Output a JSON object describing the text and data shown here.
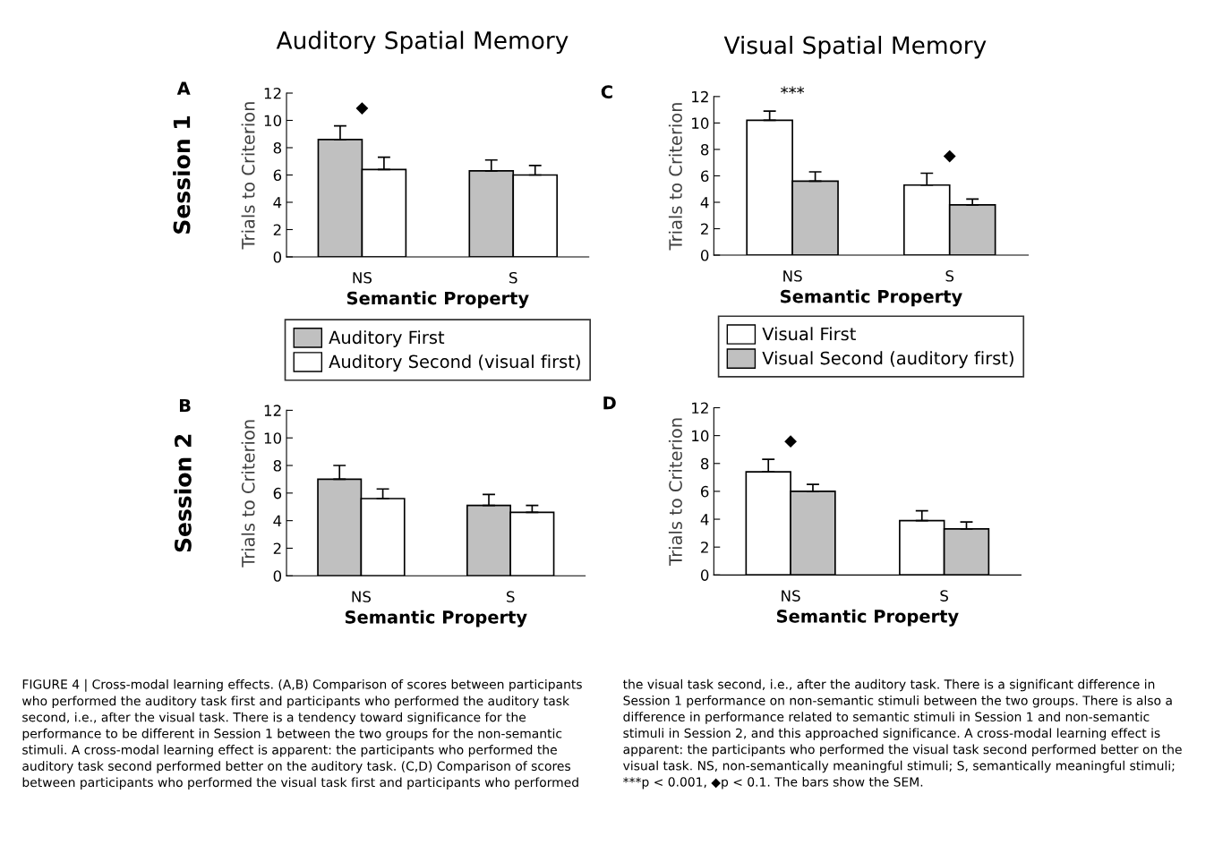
{
  "chart_data": [
    {
      "type": "bar",
      "title": "Auditory Spatial Memory",
      "xlabel": "Semantic Property",
      "ylabel": "Trials to Criterion",
      "categories": [
        "NS",
        "S"
      ],
      "series": [
        {
          "name": "Auditory First",
          "color": "#c0c0c0",
          "values": [
            8.6,
            6.3
          ],
          "errors": [
            1.0,
            0.8
          ]
        },
        {
          "name": "Auditory Second (visual first)",
          "color": "#ffffff",
          "values": [
            6.4,
            6.0
          ],
          "errors": [
            0.9,
            0.7
          ]
        }
      ],
      "ylim": [
        0,
        12
      ],
      "yticks": [
        0,
        2,
        4,
        6,
        8,
        10,
        12
      ],
      "legend": "bottom",
      "grid": false,
      "annotations": [
        "A",
        "Session 1",
        "◆"
      ]
    },
    {
      "type": "bar",
      "title": "Visual Spatial Memory",
      "xlabel": "Semantic Property",
      "ylabel": "Trials to Criterion",
      "categories": [
        "NS",
        "S"
      ],
      "series": [
        {
          "name": "Visual First",
          "color": "#ffffff",
          "values": [
            10.2,
            5.3
          ],
          "errors": [
            0.7,
            0.9
          ]
        },
        {
          "name": "Visual Second (auditory first)",
          "color": "#c0c0c0",
          "values": [
            5.6,
            3.8
          ],
          "errors": [
            0.7,
            0.45
          ]
        }
      ],
      "ylim": [
        0,
        12
      ],
      "yticks": [
        0,
        2,
        4,
        6,
        8,
        10,
        12
      ],
      "legend": "bottom",
      "grid": false,
      "annotations": [
        "C",
        "***",
        "◆"
      ]
    },
    {
      "type": "bar",
      "xlabel": "Semantic Property",
      "ylabel": "Trials to Criterion",
      "categories": [
        "NS",
        "S"
      ],
      "series": [
        {
          "color": "#c0c0c0",
          "values": [
            7.0,
            5.1
          ],
          "errors": [
            1.0,
            0.8
          ]
        },
        {
          "color": "#ffffff",
          "values": [
            5.6,
            4.6
          ],
          "errors": [
            0.7,
            0.5
          ]
        }
      ],
      "ylim": [
        0,
        12
      ],
      "yticks": [
        0,
        2,
        4,
        6,
        8,
        10,
        12
      ],
      "grid": false,
      "annotations": [
        "B",
        "Session 2"
      ]
    },
    {
      "type": "bar",
      "xlabel": "Semantic Property",
      "ylabel": "Trials to Criterion",
      "categories": [
        "NS",
        "S"
      ],
      "series": [
        {
          "color": "#ffffff",
          "values": [
            7.4,
            3.9
          ],
          "errors": [
            0.9,
            0.7
          ]
        },
        {
          "color": "#c0c0c0",
          "values": [
            6.0,
            3.3
          ],
          "errors": [
            0.5,
            0.5
          ]
        }
      ],
      "ylim": [
        0,
        12
      ],
      "yticks": [
        0,
        2,
        4,
        6,
        8,
        10,
        12
      ],
      "grid": false,
      "annotations": [
        "D",
        "◆"
      ]
    },
    {
      "type": "other",
      "annotations": [
        "FIGURE 4 | Cross-modal learning effects. (A,B) Comparison of scores between participants who performed the auditory task first and participants who performed the auditory task second, i.e., after the visual task. There is a tendency toward significance for the performance to be different in Session 1 between the two groups for the non-semantic stimuli. A cross-modal learning effect is apparent: the participants who performed the auditory task second performed better on the auditory task. (C,D) Comparison of scores between participants who performed the visual task first and participants who performed",
        "the visual task second, i.e., after the auditory task. There is a significant difference in Session 1 performance on non-semantic stimuli between the two groups. There is also a difference in performance related to semantic stimuli in Session 1 and non-semantic stimuli in Session 2, and this approached significance. A cross-modal learning effect is apparent: the participants who performed the visual task second performed better on the visual task. NS, non-semantically meaningful stimuli; S, semantically meaningful stimuli; ***p < 0.001, ◆p < 0.1. The bars show the SEM."
      ]
    }
  ]
}
